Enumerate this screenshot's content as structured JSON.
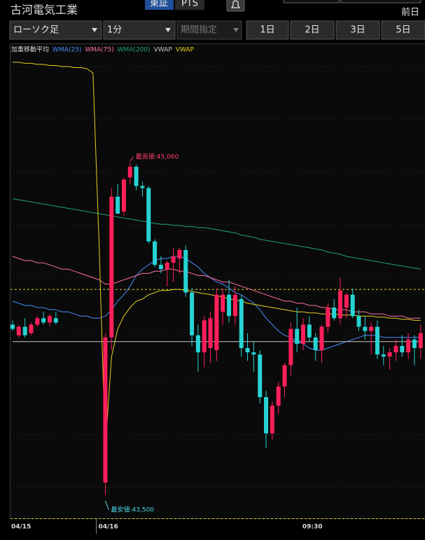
{
  "header": {
    "title": "古河電気工業",
    "exchanges": [
      "東証",
      "PTS"
    ],
    "prev": "前日"
  },
  "toolbar": {
    "chart_type": "ローソク足",
    "interval": "1分",
    "period": "期間指定",
    "ranges": [
      "1日",
      "2日",
      "3日",
      "5日"
    ]
  },
  "chart_data": {
    "type": "candlestick",
    "indicator_label": "加重移動平均",
    "categories": [
      "04/15",
      null,
      null,
      null,
      null,
      null,
      null,
      null,
      null,
      null,
      null,
      null,
      null,
      null,
      null,
      "04/16",
      null,
      null,
      null,
      null,
      null,
      null,
      null,
      null,
      null,
      null,
      null,
      null,
      null,
      null,
      null,
      null,
      null,
      null,
      null,
      null,
      null,
      null,
      null,
      null,
      null,
      null,
      null,
      null,
      null,
      null,
      null,
      null,
      "09:30",
      null,
      null,
      null,
      null,
      null,
      null,
      null,
      null,
      null,
      null,
      null,
      null,
      null,
      null,
      null,
      null,
      null,
      null
    ],
    "open": [
      44300,
      44250,
      44290,
      44260,
      44300,
      44330,
      44310,
      44330,
      null,
      null,
      null,
      null,
      null,
      null,
      null,
      43560,
      44240,
      44900,
      44830,
      44990,
      45040,
      44950,
      44940,
      44690,
      44580,
      44560,
      44590,
      44610,
      44650,
      44450,
      44250,
      44170,
      44190,
      44180,
      44360,
      44440,
      44340,
      44420,
      44190,
      44170,
      44160,
      43960,
      43790,
      43920,
      44010,
      44110,
      44280,
      44210,
      44300,
      44240,
      44180,
      44290,
      44380,
      44330,
      44380,
      44440,
      44340,
      44290,
      44270,
      44290,
      44160,
      44150,
      44170,
      44200,
      44170,
      44230,
      44190
    ],
    "high": [
      44320,
      44300,
      44330,
      44310,
      44340,
      44360,
      44350,
      44360,
      null,
      null,
      null,
      null,
      null,
      null,
      null,
      44260,
      44940,
      44960,
      44990,
      45060,
      45050,
      44970,
      44950,
      44700,
      44620,
      44600,
      44660,
      44660,
      44670,
      44470,
      44300,
      44340,
      44360,
      44470,
      44470,
      44510,
      44480,
      44440,
      44260,
      44220,
      44180,
      43990,
      43940,
      44030,
      44120,
      44310,
      44380,
      44330,
      44340,
      44260,
      44300,
      44400,
      44420,
      44520,
      44450,
      44470,
      44370,
      44340,
      44310,
      44320,
      44200,
      44190,
      44230,
      44250,
      44260,
      44250,
      44300
    ],
    "low": [
      44270,
      44240,
      44240,
      44250,
      44290,
      44300,
      44290,
      44300,
      null,
      null,
      null,
      null,
      null,
      null,
      null,
      43500,
      44180,
      44820,
      44810,
      44960,
      44930,
      44900,
      44680,
      44570,
      44540,
      44480,
      44500,
      44540,
      44430,
      44200,
      44080,
      44100,
      44120,
      44130,
      44300,
      44310,
      44300,
      44150,
      44130,
      44080,
      43930,
      43720,
      43760,
      43880,
      43960,
      44060,
      44170,
      44180,
      44220,
      44130,
      44120,
      44260,
      44320,
      44300,
      44330,
      44330,
      44270,
      44230,
      44160,
      44140,
      44110,
      44090,
      44130,
      44150,
      44140,
      44110,
      44140
    ],
    "close": [
      44280,
      44290,
      44250,
      44300,
      44330,
      44310,
      44340,
      44310,
      null,
      null,
      null,
      null,
      null,
      null,
      null,
      44240,
      44900,
      44820,
      44980,
      45040,
      44950,
      44940,
      44690,
      44580,
      44560,
      44590,
      44620,
      44650,
      44450,
      44250,
      44170,
      44320,
      44330,
      44440,
      44440,
      44340,
      44440,
      44190,
      44170,
      44160,
      43960,
      43790,
      43920,
      44010,
      44110,
      44280,
      44210,
      44300,
      44240,
      44180,
      44290,
      44380,
      44330,
      44460,
      44440,
      44340,
      44290,
      44270,
      44290,
      44160,
      44150,
      44170,
      44200,
      44170,
      44230,
      44190,
      44260
    ],
    "up_color": "#ff1f5a",
    "down_color": "#27d3d3",
    "series": [
      {
        "name": "WMA(25)",
        "color": "#4a8cff",
        "values": [
          44410,
          44400,
          44390,
          44390,
          44380,
          44380,
          44370,
          44370,
          44360,
          44360,
          44350,
          44340,
          44340,
          44330,
          44330,
          44340,
          44370,
          44410,
          44440,
          44480,
          44530,
          44560,
          44580,
          44600,
          44610,
          44610,
          44620,
          44620,
          44610,
          44590,
          44570,
          44540,
          44520,
          44500,
          44490,
          44470,
          44450,
          44440,
          44420,
          44400,
          44370,
          44330,
          44300,
          44270,
          44250,
          44240,
          44220,
          44210,
          44190,
          44180,
          44180,
          44190,
          44200,
          44210,
          44220,
          44230,
          44240,
          44250,
          44250,
          44250,
          44240,
          44240,
          44240,
          44240,
          44240,
          44240,
          44240
        ]
      },
      {
        "name": "WMA(75)",
        "color": "#ff6fa0",
        "values": [
          44620,
          44610,
          44600,
          44600,
          44590,
          44590,
          44580,
          44570,
          44560,
          44560,
          44550,
          44540,
          44530,
          44520,
          44510,
          44490,
          44490,
          44500,
          44510,
          44520,
          44530,
          44540,
          44540,
          44550,
          44550,
          44560,
          44560,
          44550,
          44550,
          44540,
          44530,
          44530,
          44520,
          44510,
          44500,
          44500,
          44490,
          44480,
          44470,
          44460,
          44450,
          44440,
          44430,
          44420,
          44410,
          44410,
          44400,
          44400,
          44390,
          44390,
          44380,
          44380,
          44370,
          44370,
          44370,
          44360,
          44360,
          44360,
          44350,
          44350,
          44350,
          44340,
          44340,
          44340,
          44330,
          44330,
          44330
        ]
      },
      {
        "name": "WMA(200)",
        "color": "#20a080",
        "values": [
          44890,
          44885,
          44880,
          44875,
          44870,
          44865,
          44860,
          44855,
          44850,
          44845,
          44840,
          44835,
          44830,
          44825,
          44820,
          44815,
          44810,
          44805,
          44800,
          44795,
          44790,
          44785,
          44780,
          44775,
          44770,
          44770,
          44765,
          44765,
          44760,
          44760,
          44755,
          44755,
          44750,
          44745,
          44740,
          44735,
          44730,
          44720,
          44715,
          44710,
          44700,
          44695,
          44690,
          44685,
          44680,
          44675,
          44670,
          44665,
          44660,
          44655,
          44650,
          44640,
          44635,
          44630,
          44620,
          44615,
          44610,
          44605,
          44600,
          44595,
          44590,
          44585,
          44580,
          44575,
          44570,
          44565,
          44560
        ]
      },
      {
        "name": "VWAP",
        "color": "#c8c8c8",
        "values": [
          44220,
          44220,
          44220,
          44220,
          44220,
          44220,
          44220,
          44220,
          44220,
          44220,
          44220,
          44220,
          44220,
          44220,
          44220,
          44220,
          44220,
          44220,
          44220,
          44220,
          44220,
          44220,
          44220,
          44220,
          44220,
          44220,
          44220,
          44220,
          44220,
          44220,
          44220,
          44220,
          44220,
          44220,
          44220,
          44220,
          44220,
          44220,
          44220,
          44220,
          44220,
          44220,
          44220,
          44220,
          44220,
          44220,
          44220,
          44220,
          44220,
          44220,
          44220,
          44220,
          44220,
          44220,
          44220,
          44220,
          44220,
          44220,
          44220,
          44220,
          44220,
          44220,
          44220,
          44220,
          44220,
          44220,
          44220
        ]
      },
      {
        "name": "VWAP",
        "color": "#e8d020",
        "values": [
          45530,
          45530,
          45525,
          45525,
          45520,
          45520,
          45515,
          45515,
          45510,
          45510,
          45505,
          45505,
          45500,
          45480,
          44670,
          43720,
          44150,
          44280,
          44340,
          44380,
          44410,
          44420,
          44440,
          44450,
          44460,
          44460,
          44465,
          44465,
          44460,
          44455,
          44450,
          44445,
          44440,
          44435,
          44430,
          44420,
          44415,
          44410,
          44400,
          44395,
          44390,
          44385,
          44380,
          44375,
          44370,
          44365,
          44360,
          44360,
          44355,
          44355,
          44350,
          44350,
          44350,
          44345,
          44345,
          44345,
          44340,
          44340,
          44340,
          44335,
          44335,
          44330,
          44330,
          44325,
          44325,
          44320,
          44320
        ]
      }
    ],
    "ylim": [
      43392,
      45592
    ],
    "annotations": [
      {
        "value": 45060,
        "label": "最高値:45,060",
        "color": "#ff3c6e"
      },
      {
        "value": 43500,
        "label": "最安値:43,500",
        "color": "#4fd8e8"
      }
    ],
    "reference_lines": [
      {
        "value": 44465,
        "color": "#e8d020",
        "dash": true
      }
    ]
  }
}
